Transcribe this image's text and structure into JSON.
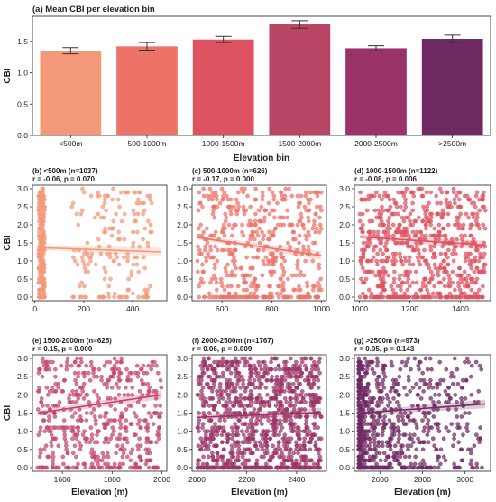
{
  "chart_data": [
    {
      "type": "bar",
      "title": "(a) Mean CBI per elevation bin",
      "xlabel": "Elevation bin",
      "ylabel": "CBI",
      "categories": [
        "<500m",
        "500-1000m",
        "1000-1500m",
        "1500-2000m",
        "2000-2500m",
        ">2500m"
      ],
      "values": [
        1.35,
        1.42,
        1.53,
        1.77,
        1.39,
        1.54
      ],
      "error": [
        0.05,
        0.06,
        0.05,
        0.06,
        0.04,
        0.06
      ],
      "ylim": [
        0,
        1.9
      ],
      "yticks": [
        "0.0",
        "0.5",
        "1.0",
        "1.5"
      ],
      "colors": [
        "#f3997a",
        "#ed7268",
        "#dd5361",
        "#b84466",
        "#9a3468",
        "#702a62"
      ],
      "grid": false
    },
    {
      "type": "scatter",
      "title": "(b) <500m (n=1037)",
      "stats": "r = -0.06,  p = 0.070",
      "ylabel": "CBI",
      "xlim": [
        -10,
        540
      ],
      "ylim": [
        -0.1,
        3.1
      ],
      "xticks": [
        "0",
        "200",
        "400"
      ],
      "yticks": [
        "0.0",
        "0.5",
        "1.0",
        "1.5",
        "2.0",
        "2.5",
        "3.0"
      ],
      "trend": [
        1.37,
        1.25
      ],
      "color": "#f3997a"
    },
    {
      "type": "scatter",
      "title": "(c) 500-1000m (n=626)",
      "stats": "r = -0.17,  p = 0.000",
      "xlim": [
        480,
        1020
      ],
      "ylim": [
        -0.1,
        3.1
      ],
      "xticks": [
        "600",
        "800",
        "1000"
      ],
      "yticks": [
        "0.0",
        "0.5",
        "1.0",
        "1.5",
        "2.0",
        "2.5",
        "3.0"
      ],
      "trend": [
        1.65,
        1.15
      ],
      "color": "#ed7268"
    },
    {
      "type": "scatter",
      "title": "(d) 1000-1500m (n=1122)",
      "stats": "r = -0.08,  p = 0.006",
      "xlim": [
        980,
        1520
      ],
      "ylim": [
        -0.1,
        3.1
      ],
      "xticks": [
        "1000",
        "1200",
        "1400"
      ],
      "yticks": [
        "0.0",
        "0.5",
        "1.0",
        "1.5",
        "2.0",
        "2.5",
        "3.0"
      ],
      "trend": [
        1.67,
        1.44
      ],
      "color": "#dd5361"
    },
    {
      "type": "scatter",
      "title": "(e) 1500-2000m (n=625)",
      "stats": "r = 0.15,  p = 0.000",
      "xlabel": "Elevation (m)",
      "ylabel": "CBI",
      "xlim": [
        1480,
        2020
      ],
      "ylim": [
        -0.1,
        3.1
      ],
      "xticks": [
        "1600",
        "1800",
        "2000"
      ],
      "yticks": [
        "0.0",
        "0.5",
        "1.0",
        "1.5",
        "2.0",
        "2.5",
        "3.0"
      ],
      "trend": [
        1.5,
        2.0
      ],
      "color": "#c4456a"
    },
    {
      "type": "scatter",
      "title": "(f) 2000-2500m (n=1767)",
      "stats": "r = 0.06,  p = 0.009",
      "xlabel": "Elevation (m)",
      "xlim": [
        1980,
        2520
      ],
      "ylim": [
        -0.1,
        3.1
      ],
      "xticks": [
        "2000",
        "2200",
        "2400"
      ],
      "yticks": [
        "0.0",
        "0.5",
        "1.0",
        "1.5",
        "2.0",
        "2.5",
        "3.0"
      ],
      "trend": [
        1.38,
        1.52
      ],
      "color": "#9a3468"
    },
    {
      "type": "scatter",
      "title": "(g) >2500m (n=973)",
      "stats": "r = 0.05,  p = 0.143",
      "xlabel": "Elevation (m)",
      "xlim": [
        2480,
        3120
      ],
      "ylim": [
        -0.1,
        3.1
      ],
      "xticks": [
        "2600",
        "2800",
        "3000"
      ],
      "yticks": [
        "0.0",
        "0.5",
        "1.0",
        "1.5",
        "2.0",
        "2.5",
        "3.0"
      ],
      "trend": [
        1.5,
        1.75
      ],
      "color": "#702a62"
    }
  ]
}
